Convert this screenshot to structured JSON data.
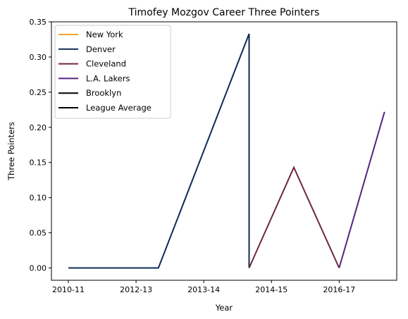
{
  "chart_data": {
    "type": "line",
    "title": "Timofey Mozgov Career Three Pointers",
    "xlabel": "Year",
    "ylabel": "Three Pointers",
    "x_tick_labels": [
      "2010-11",
      "2012-13",
      "2013-14",
      "2014-15",
      "2016-17"
    ],
    "xlim": [
      -0.25,
      4.85
    ],
    "ylim": [
      -0.0175,
      0.35
    ],
    "y_ticks": [
      0.0,
      0.05,
      0.1,
      0.15,
      0.2,
      0.25,
      0.3,
      0.35
    ],
    "y_tick_labels": [
      "0.00",
      "0.05",
      "0.10",
      "0.15",
      "0.20",
      "0.25",
      "0.30",
      "0.35"
    ],
    "grid": false,
    "legend_position": "top-left",
    "series": [
      {
        "name": "New York",
        "color": "#F5A623",
        "x": [],
        "y": []
      },
      {
        "name": "Denver",
        "color": "#0D2B56",
        "x": [
          0,
          1.33,
          2.67,
          2.67
        ],
        "y": [
          0.0,
          0.0,
          0.333,
          0.0
        ]
      },
      {
        "name": "Cleveland",
        "color": "#6F263D",
        "x": [
          2.67,
          3.33,
          4.0
        ],
        "y": [
          0.0,
          0.143,
          0.0
        ]
      },
      {
        "name": "L.A. Lakers",
        "color": "#552583",
        "x": [
          4.0,
          4.67
        ],
        "y": [
          0.0,
          0.222
        ]
      },
      {
        "name": "Brooklyn",
        "color": "#000000",
        "x": [],
        "y": []
      },
      {
        "name": "League Average",
        "color": "#000000",
        "x": [],
        "y": []
      }
    ]
  }
}
